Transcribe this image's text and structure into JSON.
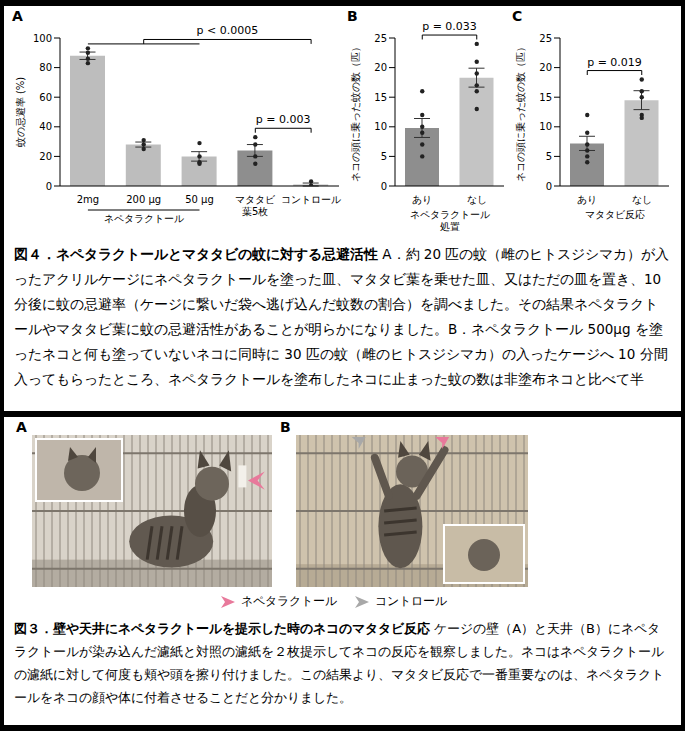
{
  "chart_data": [
    {
      "panel": "A",
      "type": "bar",
      "ylabel": "蚊の忌避率 (%)",
      "categories": [
        "2mg",
        "200 μg",
        "50 μg",
        "マタタビ葉5枚",
        "コントロール"
      ],
      "values": [
        88,
        28,
        20,
        24,
        1
      ],
      "errors": [
        2.5,
        1.7,
        3.2,
        4,
        1
      ],
      "points": [
        [
          93,
          90,
          86,
          83
        ],
        [
          31,
          28,
          25
        ],
        [
          29,
          20,
          16,
          15
        ],
        [
          33,
          28,
          20,
          15
        ],
        [
          3,
          0,
          0
        ]
      ],
      "colors": [
        "#bdbdbd",
        "#bdbdbd",
        "#bdbdbd",
        "#8e8e8e",
        "#bdbdbd"
      ],
      "ylim": [
        0,
        100
      ],
      "yticks": [
        0,
        20,
        40,
        60,
        80,
        100
      ],
      "groups": [
        {
          "label": "ネペタラクトール",
          "categories": [
            "2mg",
            "200 μg",
            "50 μg"
          ]
        }
      ],
      "annotations": [
        {
          "text": "p < 0.0005",
          "left": [
            "2mg",
            "200 μg",
            "50 μg"
          ],
          "right": [
            "コントロール"
          ]
        },
        {
          "text": "p = 0.003",
          "left": [
            "マタタビ葉5枚"
          ],
          "right": [
            "コントロール"
          ]
        }
      ]
    },
    {
      "panel": "B",
      "type": "bar",
      "ylabel": "ネコの頭に乗った蚊の数（匹）",
      "xlabel": "ネペタラクトール処置",
      "categories": [
        "あり",
        "なし"
      ],
      "values": [
        9.8,
        18.3
      ],
      "errors": [
        1.6,
        1.6
      ],
      "points": [
        [
          16,
          12,
          10,
          9,
          7,
          5
        ],
        [
          24,
          21,
          19,
          17,
          16,
          13
        ]
      ],
      "colors": [
        "#8e8e8e",
        "#c4c4c4"
      ],
      "ylim": [
        0,
        25
      ],
      "yticks": [
        0,
        5,
        10,
        15,
        20,
        25
      ],
      "annotations": [
        {
          "text": "p = 0.033",
          "left": [
            "あり"
          ],
          "right": [
            "なし"
          ]
        }
      ]
    },
    {
      "panel": "C",
      "type": "bar",
      "ylabel": "ネコの頭に乗った蚊の数（匹）",
      "xlabel": "マタタビ反応",
      "categories": [
        "あり",
        "なし"
      ],
      "values": [
        7.2,
        14.5
      ],
      "errors": [
        1.2,
        1.6
      ],
      "points": [
        [
          12,
          9,
          7,
          6,
          5,
          4
        ],
        [
          18,
          16,
          15,
          12,
          11.5
        ]
      ],
      "colors": [
        "#8e8e8e",
        "#c4c4c4"
      ],
      "ylim": [
        0,
        25
      ],
      "yticks": [
        0,
        5,
        10,
        15,
        20,
        25
      ],
      "annotations": [
        {
          "text": "p = 0.019",
          "left": [
            "あり"
          ],
          "right": [
            "なし"
          ]
        }
      ]
    }
  ],
  "figure4_caption": {
    "title": "図４．ネペタラクトールとマタタビの蚊に対する忌避活性",
    "text": "A．約 20 匹の蚊（雌のヒトスジシマカ）が入ったアクリルケージにネペタラクトールを塗った皿、マタタビ葉を乗せた皿、又はただの皿を置き、10 分後に蚊の忌避率（ケージに繋いだ袋へ逃げ込んだ蚊数の割合）を調べました。その結果ネペタラクトールやマタタビ葉に蚊の忌避活性があることが明らかになりました。B．ネペタラクトール 500μg を塗ったネコと何も塗っていないネコに同時に 30 匹の蚊（雌のヒトスジシマカ）の入ったケージへ 10 分間入ってもらったところ、ネペタラクトールを塗布したネコに止まった蚊の数は非塗布ネコと比べて半"
  },
  "figure3": {
    "panels": [
      "A",
      "B"
    ],
    "markers": [
      {
        "label": "ネペタラクトール",
        "color": "#e8799b"
      },
      {
        "label": "コントロール",
        "color": "#a8a8a8"
      }
    ],
    "caption": {
      "title": "図３．壁や天井にネペタラクトールを提示した時のネコのマタタビ反応",
      "text": "ケージの壁（A）と天井（B）にネペタラクトールが染み込んだ濾紙と対照の濾紙を２枚提示してネコの反応を観察しました。ネコはネペタラクトールの濾紙に対して何度も頬や頭を擦り付けました。この結果より、マタタビ反応で一番重要なのは、ネペタラクトールをネコの顔や体に付着させることだと分かりました。"
    }
  }
}
